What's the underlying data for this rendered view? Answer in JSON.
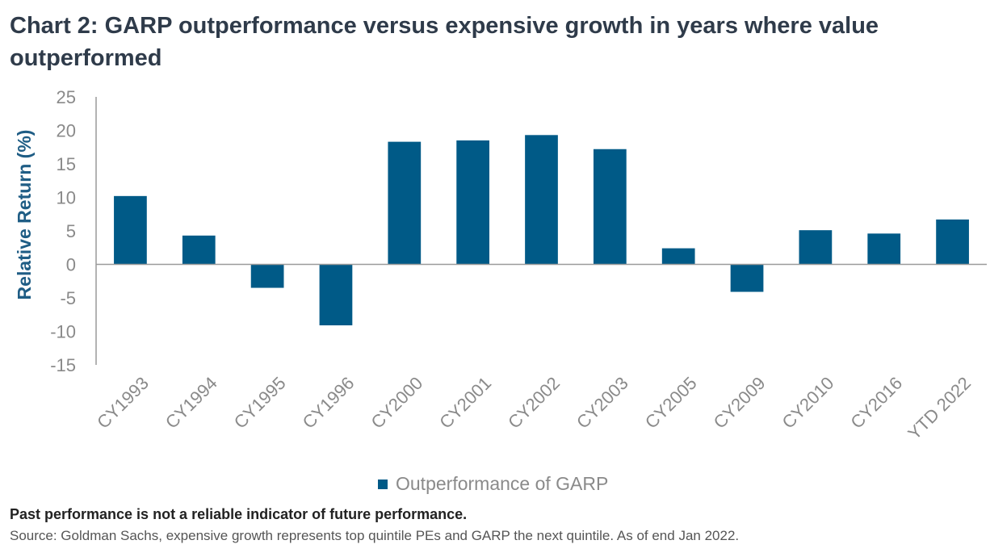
{
  "title": "Chart 2: GARP outperformance versus expensive growth in years where value outperformed",
  "footnote": "Past performance is not a reliable indicator of future performance.",
  "source": "Source: Goldman Sachs, expensive growth represents top quintile PEs and GARP the next quintile. As of end Jan 2022.",
  "colors": {
    "bar": "#005a87",
    "axis": "#9a9a9a",
    "title": "#2f3b4a",
    "axis_title": "#1f5d85"
  },
  "chart_data": {
    "type": "bar",
    "title": "Chart 2: GARP outperformance versus expensive growth in years where value outperformed",
    "xlabel": "",
    "ylabel": "Relative Return (%)",
    "ylim": [
      -15,
      25
    ],
    "yticks": [
      25,
      20,
      15,
      10,
      5,
      0,
      -5,
      -10,
      -15
    ],
    "ytick_labels": [
      "25",
      "20",
      "15",
      "10",
      "5",
      "0",
      "-5",
      "-10",
      "-15"
    ],
    "grid": false,
    "legend_position": "bottom",
    "categories": [
      "CY1993",
      "CY1994",
      "CY1995",
      "CY1996",
      "CY2000",
      "CY2001",
      "CY2002",
      "CY2003",
      "CY2005",
      "CY2009",
      "CY2010",
      "CY2016",
      "YTD 2022"
    ],
    "series": [
      {
        "name": "Outperformance of GARP",
        "values": [
          10.2,
          4.3,
          -3.5,
          -9.1,
          18.3,
          18.5,
          19.3,
          17.2,
          2.4,
          -4.1,
          5.1,
          4.6,
          6.7
        ]
      }
    ]
  }
}
